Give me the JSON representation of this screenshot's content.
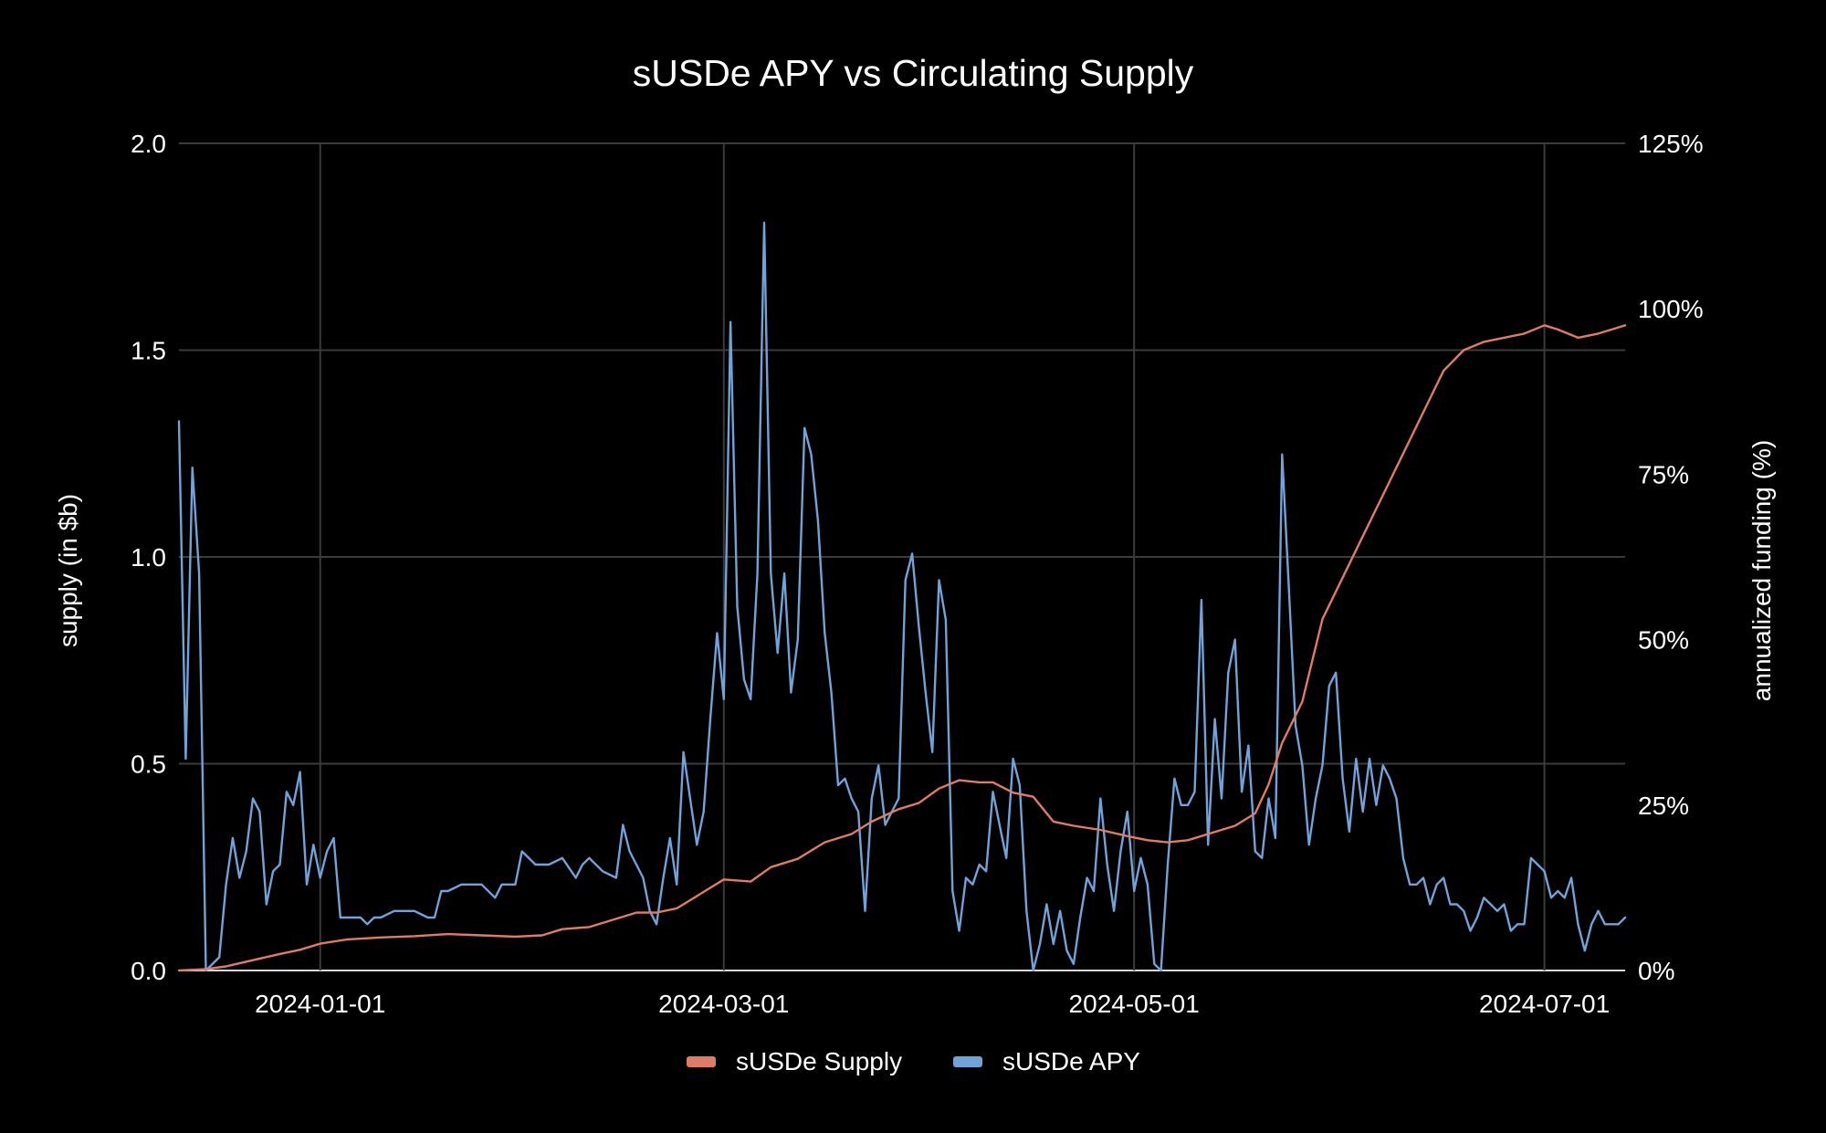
{
  "chart_data": {
    "type": "line",
    "title": "sUSDe APY vs Circulating Supply",
    "xlabel": "",
    "ylabel": "supply (in $b)",
    "y2label": "annualized funding (%)",
    "x_range": [
      "2023-12-11",
      "2024-07-13"
    ],
    "ylim": [
      0,
      2
    ],
    "y2lim": [
      0,
      125
    ],
    "x_ticks": [
      "2024-01-01",
      "2024-03-01",
      "2024-05-01",
      "2024-07-01"
    ],
    "y_ticks": [
      "0.0",
      "0.5",
      "1.0",
      "1.5",
      "2.0"
    ],
    "y_tick_values": [
      0,
      0.5,
      1.0,
      1.5,
      2.0
    ],
    "y2_ticks": [
      "0%",
      "25%",
      "50%",
      "75%",
      "100%",
      "125%"
    ],
    "y2_tick_values": [
      0,
      25,
      50,
      75,
      100,
      125
    ],
    "grid": true,
    "legend_position": "bottom-center",
    "colors": {
      "supply": "#e07b67",
      "apy": "#6fa3da",
      "background": "#000000",
      "grid": "#3b3b3b"
    },
    "series": [
      {
        "name": "sUSDe Supply",
        "axis": "y",
        "points": [
          [
            "2023-12-11",
            0.0
          ],
          [
            "2023-12-15",
            0.003
          ],
          [
            "2023-12-18",
            0.01
          ],
          [
            "2023-12-22",
            0.025
          ],
          [
            "2023-12-26",
            0.04
          ],
          [
            "2023-12-29",
            0.05
          ],
          [
            "2024-01-01",
            0.065
          ],
          [
            "2024-01-05",
            0.075
          ],
          [
            "2024-01-10",
            0.08
          ],
          [
            "2024-01-15",
            0.083
          ],
          [
            "2024-01-20",
            0.088
          ],
          [
            "2024-01-25",
            0.085
          ],
          [
            "2024-01-30",
            0.082
          ],
          [
            "2024-02-03",
            0.085
          ],
          [
            "2024-02-06",
            0.1
          ],
          [
            "2024-02-10",
            0.105
          ],
          [
            "2024-02-14",
            0.125
          ],
          [
            "2024-02-17",
            0.14
          ],
          [
            "2024-02-20",
            0.14
          ],
          [
            "2024-02-23",
            0.15
          ],
          [
            "2024-02-26",
            0.18
          ],
          [
            "2024-02-28",
            0.2
          ],
          [
            "2024-03-01",
            0.22
          ],
          [
            "2024-03-05",
            0.215
          ],
          [
            "2024-03-08",
            0.25
          ],
          [
            "2024-03-12",
            0.27
          ],
          [
            "2024-03-16",
            0.31
          ],
          [
            "2024-03-20",
            0.33
          ],
          [
            "2024-03-23",
            0.36
          ],
          [
            "2024-03-27",
            0.39
          ],
          [
            "2024-03-30",
            0.405
          ],
          [
            "2024-04-02",
            0.44
          ],
          [
            "2024-04-05",
            0.46
          ],
          [
            "2024-04-08",
            0.455
          ],
          [
            "2024-04-10",
            0.455
          ],
          [
            "2024-04-13",
            0.43
          ],
          [
            "2024-04-16",
            0.42
          ],
          [
            "2024-04-19",
            0.36
          ],
          [
            "2024-04-22",
            0.35
          ],
          [
            "2024-04-26",
            0.34
          ],
          [
            "2024-04-30",
            0.325
          ],
          [
            "2024-05-03",
            0.315
          ],
          [
            "2024-05-06",
            0.31
          ],
          [
            "2024-05-09",
            0.315
          ],
          [
            "2024-05-12",
            0.33
          ],
          [
            "2024-05-16",
            0.35
          ],
          [
            "2024-05-19",
            0.38
          ],
          [
            "2024-05-21",
            0.45
          ],
          [
            "2024-05-23",
            0.55
          ],
          [
            "2024-05-26",
            0.65
          ],
          [
            "2024-05-29",
            0.85
          ],
          [
            "2024-06-01",
            0.95
          ],
          [
            "2024-06-04",
            1.05
          ],
          [
            "2024-06-07",
            1.15
          ],
          [
            "2024-06-10",
            1.25
          ],
          [
            "2024-06-13",
            1.35
          ],
          [
            "2024-06-16",
            1.45
          ],
          [
            "2024-06-19",
            1.5
          ],
          [
            "2024-06-22",
            1.52
          ],
          [
            "2024-06-25",
            1.53
          ],
          [
            "2024-06-28",
            1.54
          ],
          [
            "2024-07-01",
            1.56
          ],
          [
            "2024-07-03",
            1.55
          ],
          [
            "2024-07-06",
            1.53
          ],
          [
            "2024-07-09",
            1.54
          ],
          [
            "2024-07-11",
            1.55
          ],
          [
            "2024-07-13",
            1.56
          ]
        ]
      },
      {
        "name": "sUSDe APY",
        "axis": "y2",
        "points": [
          [
            "2023-12-11",
            83
          ],
          [
            "2023-12-12",
            32
          ],
          [
            "2023-12-13",
            76
          ],
          [
            "2023-12-14",
            60
          ],
          [
            "2023-12-15",
            0
          ],
          [
            "2023-12-17",
            2
          ],
          [
            "2023-12-18",
            13
          ],
          [
            "2023-12-19",
            20
          ],
          [
            "2023-12-20",
            14
          ],
          [
            "2023-12-21",
            18
          ],
          [
            "2023-12-22",
            26
          ],
          [
            "2023-12-23",
            24
          ],
          [
            "2023-12-24",
            10
          ],
          [
            "2023-12-25",
            15
          ],
          [
            "2023-12-26",
            16
          ],
          [
            "2023-12-27",
            27
          ],
          [
            "2023-12-28",
            25
          ],
          [
            "2023-12-29",
            30
          ],
          [
            "2023-12-30",
            13
          ],
          [
            "2023-12-31",
            19
          ],
          [
            "2024-01-01",
            14
          ],
          [
            "2024-01-02",
            18
          ],
          [
            "2024-01-03",
            20
          ],
          [
            "2024-01-04",
            8
          ],
          [
            "2024-01-07",
            8
          ],
          [
            "2024-01-08",
            7
          ],
          [
            "2024-01-09",
            8
          ],
          [
            "2024-01-10",
            8
          ],
          [
            "2024-01-12",
            9
          ],
          [
            "2024-01-15",
            9
          ],
          [
            "2024-01-17",
            8
          ],
          [
            "2024-01-18",
            8
          ],
          [
            "2024-01-19",
            12
          ],
          [
            "2024-01-20",
            12
          ],
          [
            "2024-01-22",
            13
          ],
          [
            "2024-01-25",
            13
          ],
          [
            "2024-01-27",
            11
          ],
          [
            "2024-01-28",
            13
          ],
          [
            "2024-01-30",
            13
          ],
          [
            "2024-01-31",
            18
          ],
          [
            "2024-02-02",
            16
          ],
          [
            "2024-02-04",
            16
          ],
          [
            "2024-02-06",
            17
          ],
          [
            "2024-02-08",
            14
          ],
          [
            "2024-02-09",
            16
          ],
          [
            "2024-02-10",
            17
          ],
          [
            "2024-02-12",
            15
          ],
          [
            "2024-02-14",
            14
          ],
          [
            "2024-02-15",
            22
          ],
          [
            "2024-02-16",
            18
          ],
          [
            "2024-02-17",
            16
          ],
          [
            "2024-02-18",
            14
          ],
          [
            "2024-02-19",
            9
          ],
          [
            "2024-02-20",
            7
          ],
          [
            "2024-02-21",
            14
          ],
          [
            "2024-02-22",
            20
          ],
          [
            "2024-02-23",
            13
          ],
          [
            "2024-02-24",
            33
          ],
          [
            "2024-02-25",
            26
          ],
          [
            "2024-02-26",
            19
          ],
          [
            "2024-02-27",
            24
          ],
          [
            "2024-02-28",
            38
          ],
          [
            "2024-02-29",
            51
          ],
          [
            "2024-03-01",
            41
          ],
          [
            "2024-03-02",
            98
          ],
          [
            "2024-03-03",
            55
          ],
          [
            "2024-03-04",
            44
          ],
          [
            "2024-03-05",
            41
          ],
          [
            "2024-03-06",
            60
          ],
          [
            "2024-03-07",
            113
          ],
          [
            "2024-03-08",
            60
          ],
          [
            "2024-03-09",
            48
          ],
          [
            "2024-03-10",
            60
          ],
          [
            "2024-03-11",
            42
          ],
          [
            "2024-03-12",
            50
          ],
          [
            "2024-03-13",
            82
          ],
          [
            "2024-03-14",
            78
          ],
          [
            "2024-03-15",
            68
          ],
          [
            "2024-03-16",
            51
          ],
          [
            "2024-03-17",
            42
          ],
          [
            "2024-03-18",
            28
          ],
          [
            "2024-03-19",
            29
          ],
          [
            "2024-03-20",
            26
          ],
          [
            "2024-03-21",
            24
          ],
          [
            "2024-03-22",
            9
          ],
          [
            "2024-03-23",
            26
          ],
          [
            "2024-03-24",
            31
          ],
          [
            "2024-03-25",
            22
          ],
          [
            "2024-03-26",
            24
          ],
          [
            "2024-03-27",
            26
          ],
          [
            "2024-03-28",
            59
          ],
          [
            "2024-03-29",
            63
          ],
          [
            "2024-03-30",
            52
          ],
          [
            "2024-03-31",
            42
          ],
          [
            "2024-04-01",
            33
          ],
          [
            "2024-04-02",
            59
          ],
          [
            "2024-04-03",
            53
          ],
          [
            "2024-04-04",
            12
          ],
          [
            "2024-04-05",
            6
          ],
          [
            "2024-04-06",
            14
          ],
          [
            "2024-04-07",
            13
          ],
          [
            "2024-04-08",
            16
          ],
          [
            "2024-04-09",
            15
          ],
          [
            "2024-04-10",
            27
          ],
          [
            "2024-04-11",
            22
          ],
          [
            "2024-04-12",
            17
          ],
          [
            "2024-04-13",
            32
          ],
          [
            "2024-04-14",
            28
          ],
          [
            "2024-04-15",
            9
          ],
          [
            "2024-04-16",
            0
          ],
          [
            "2024-04-17",
            4
          ],
          [
            "2024-04-18",
            10
          ],
          [
            "2024-04-19",
            4
          ],
          [
            "2024-04-20",
            9
          ],
          [
            "2024-04-21",
            3
          ],
          [
            "2024-04-22",
            1
          ],
          [
            "2024-04-23",
            8
          ],
          [
            "2024-04-24",
            14
          ],
          [
            "2024-04-25",
            12
          ],
          [
            "2024-04-26",
            26
          ],
          [
            "2024-04-27",
            16
          ],
          [
            "2024-04-28",
            9
          ],
          [
            "2024-04-29",
            18
          ],
          [
            "2024-04-30",
            24
          ],
          [
            "2024-05-01",
            12
          ],
          [
            "2024-05-02",
            17
          ],
          [
            "2024-05-03",
            13
          ],
          [
            "2024-05-04",
            1
          ],
          [
            "2024-05-05",
            0
          ],
          [
            "2024-05-06",
            16
          ],
          [
            "2024-05-07",
            29
          ],
          [
            "2024-05-08",
            25
          ],
          [
            "2024-05-09",
            25
          ],
          [
            "2024-05-10",
            27
          ],
          [
            "2024-05-11",
            56
          ],
          [
            "2024-05-12",
            19
          ],
          [
            "2024-05-13",
            38
          ],
          [
            "2024-05-14",
            26
          ],
          [
            "2024-05-15",
            45
          ],
          [
            "2024-05-16",
            50
          ],
          [
            "2024-05-17",
            27
          ],
          [
            "2024-05-18",
            34
          ],
          [
            "2024-05-19",
            18
          ],
          [
            "2024-05-20",
            17
          ],
          [
            "2024-05-21",
            26
          ],
          [
            "2024-05-22",
            20
          ],
          [
            "2024-05-23",
            78
          ],
          [
            "2024-05-24",
            58
          ],
          [
            "2024-05-25",
            37
          ],
          [
            "2024-05-26",
            31
          ],
          [
            "2024-05-27",
            19
          ],
          [
            "2024-05-28",
            26
          ],
          [
            "2024-05-29",
            31
          ],
          [
            "2024-05-30",
            43
          ],
          [
            "2024-05-31",
            45
          ],
          [
            "2024-06-01",
            29
          ],
          [
            "2024-06-02",
            21
          ],
          [
            "2024-06-03",
            32
          ],
          [
            "2024-06-04",
            24
          ],
          [
            "2024-06-05",
            32
          ],
          [
            "2024-06-06",
            25
          ],
          [
            "2024-06-07",
            31
          ],
          [
            "2024-06-08",
            29
          ],
          [
            "2024-06-09",
            26
          ],
          [
            "2024-06-10",
            17
          ],
          [
            "2024-06-11",
            13
          ],
          [
            "2024-06-12",
            13
          ],
          [
            "2024-06-13",
            14
          ],
          [
            "2024-06-14",
            10
          ],
          [
            "2024-06-15",
            13
          ],
          [
            "2024-06-16",
            14
          ],
          [
            "2024-06-17",
            10
          ],
          [
            "2024-06-18",
            10
          ],
          [
            "2024-06-19",
            9
          ],
          [
            "2024-06-20",
            6
          ],
          [
            "2024-06-21",
            8
          ],
          [
            "2024-06-22",
            11
          ],
          [
            "2024-06-23",
            10
          ],
          [
            "2024-06-24",
            9
          ],
          [
            "2024-06-25",
            10
          ],
          [
            "2024-06-26",
            6
          ],
          [
            "2024-06-27",
            7
          ],
          [
            "2024-06-28",
            7
          ],
          [
            "2024-06-29",
            17
          ],
          [
            "2024-06-30",
            16
          ],
          [
            "2024-07-01",
            15
          ],
          [
            "2024-07-02",
            11
          ],
          [
            "2024-07-03",
            12
          ],
          [
            "2024-07-04",
            11
          ],
          [
            "2024-07-05",
            14
          ],
          [
            "2024-07-06",
            7
          ],
          [
            "2024-07-07",
            3
          ],
          [
            "2024-07-08",
            7
          ],
          [
            "2024-07-09",
            9
          ],
          [
            "2024-07-10",
            7
          ],
          [
            "2024-07-11",
            7
          ],
          [
            "2024-07-12",
            7
          ],
          [
            "2024-07-13",
            8
          ]
        ]
      }
    ]
  }
}
